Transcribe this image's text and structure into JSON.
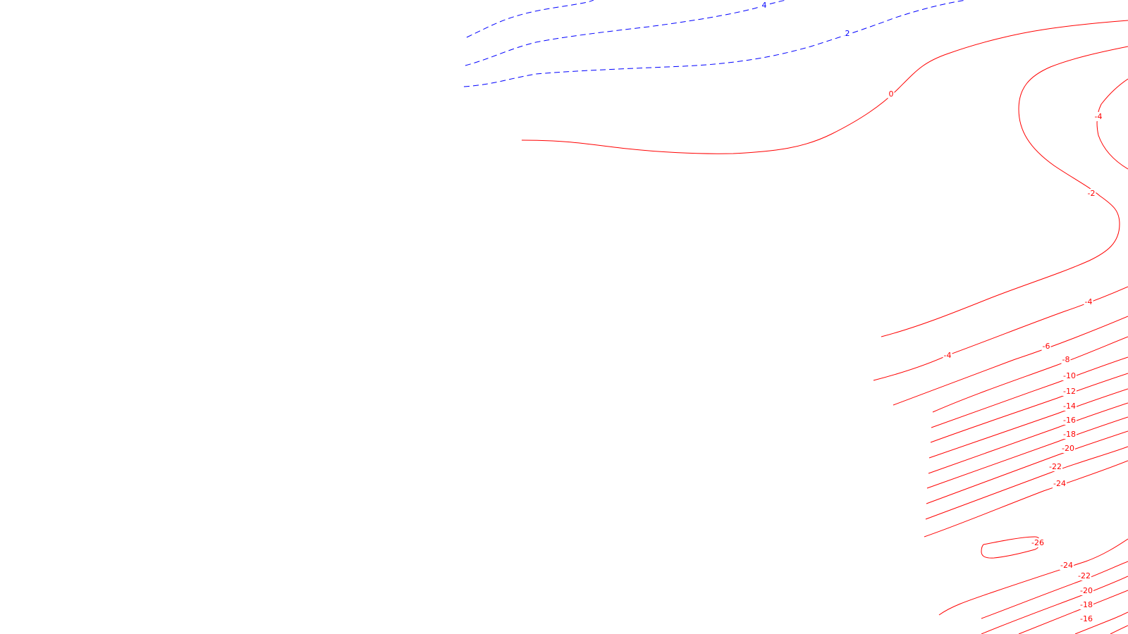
{
  "colors": {
    "background": "#ffffff",
    "positive_contour": "#0000ff",
    "non_positive_contour": "#ff0000"
  },
  "contour_labels": {
    "blue_4": "4",
    "blue_2": "2",
    "red_0": "0",
    "red_minus2": "-2",
    "red_minus4_upper": "-4",
    "red_minus4_mid": "-4",
    "red_minus4_left": "-4",
    "red_minus6": "-6",
    "red_minus8": "-8",
    "red_minus10": "-10",
    "red_minus12": "-12",
    "red_minus14": "-14",
    "red_minus16_a": "-16",
    "red_minus18_a": "-18",
    "red_minus20_a": "-20",
    "red_minus22_a": "-22",
    "red_minus24_a": "-24",
    "red_minus26": "-26",
    "red_minus24_b": "-24",
    "red_minus22_b": "-22",
    "red_minus20_b": "-20",
    "red_minus18_b": "-18",
    "red_minus16_b": "-16"
  }
}
